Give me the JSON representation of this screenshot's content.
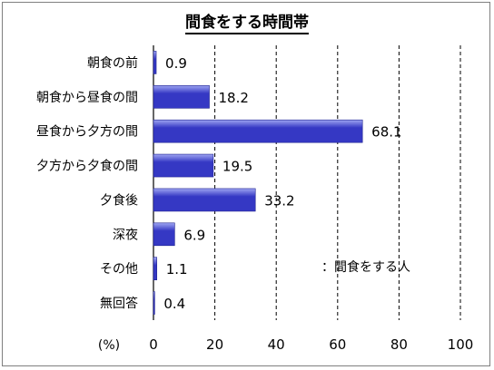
{
  "chart_data": {
    "type": "bar",
    "orientation": "horizontal",
    "title": "間食をする時間帯",
    "categories": [
      "朝食の前",
      "朝食から昼食の間",
      "昼食から夕方の間",
      "夕方から夕食の間",
      "夕食後",
      "深夜",
      "その他",
      "無回答"
    ],
    "values": [
      0.9,
      18.2,
      68.1,
      19.5,
      33.2,
      6.9,
      1.1,
      0.4
    ],
    "value_labels": [
      "0.9",
      "18.2",
      "68.1",
      "19.5",
      "33.2",
      "6.9",
      "1.1",
      "0.4"
    ],
    "xlim": [
      0,
      100
    ],
    "x_ticks": [
      "0",
      "20",
      "40",
      "60",
      "80",
      "100"
    ],
    "x_tick_values": [
      0,
      20,
      40,
      60,
      80,
      100
    ],
    "unit_label": "(%)",
    "legend": {
      "label": "：間食をする人",
      "placement": "lower-right"
    },
    "grid": "vertical dashed",
    "bar_color": "#3538c4",
    "bar_color_light": "#9fa6f2"
  }
}
